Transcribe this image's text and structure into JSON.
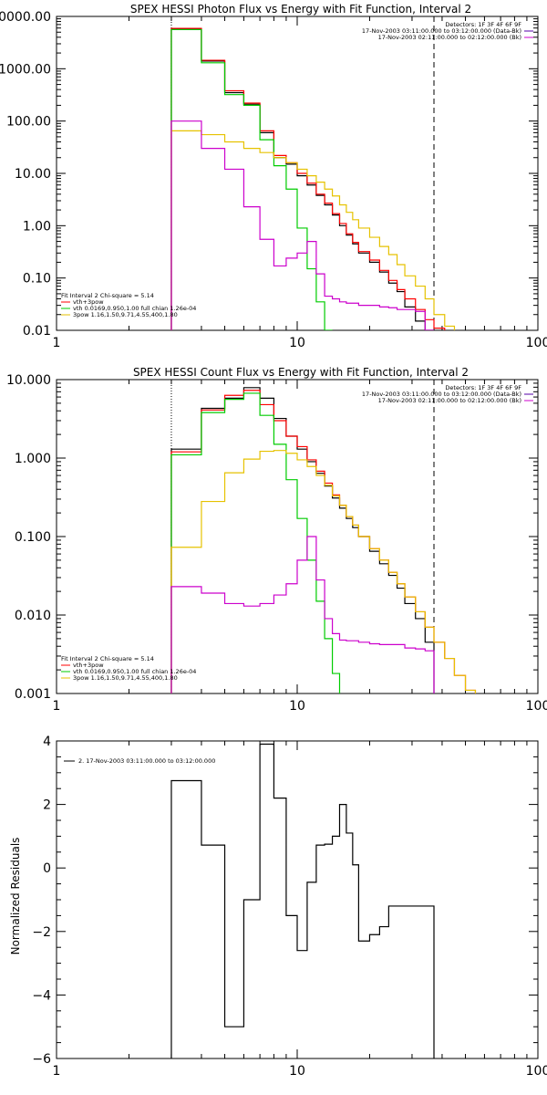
{
  "colors": {
    "black": "#000000",
    "red": "#ff0000",
    "green": "#00cc00",
    "magenta": "#cc00cc",
    "yellow": "#e6c200",
    "purple": "#5500aa"
  },
  "chart_data": [
    {
      "type": "line",
      "scale": "log-log",
      "title": "SPEX HESSI Photon Flux vs Energy with Fit Function, Interval 2",
      "xlim": [
        1,
        100
      ],
      "ylim": [
        0.01,
        10000
      ],
      "xticklabels": [
        "1",
        "10",
        "100"
      ],
      "yticks": [
        0.01,
        0.1,
        1,
        10,
        100,
        1000,
        10000
      ],
      "yticklabels": [
        "0.01",
        "0.10",
        "1.00",
        "10.00",
        "100.00",
        "1000.00",
        "10000.00"
      ],
      "vlines": [
        {
          "x": 3,
          "style": "dotted"
        },
        {
          "x": 37,
          "style": "dashed"
        }
      ],
      "edges": [
        3,
        4,
        5,
        6,
        7,
        8,
        9,
        10,
        11,
        12,
        13,
        14,
        15,
        16,
        17,
        18,
        20,
        22,
        24,
        26,
        28,
        31,
        34,
        37,
        41,
        45,
        50
      ],
      "info_lines": [
        {
          "text": "Detectors: 1F 3F 4F 6F 9F"
        },
        {
          "text": "17-Nov-2003 03:11:00.000 to 03:12:00.000 (Data-Bk)",
          "color": "#5500aa"
        },
        {
          "text": "17-Nov-2003 02:11:00.000 to 02:12:00.000 (Bk)",
          "color": "#cc00cc"
        }
      ],
      "fit_lines": [
        {
          "text": "Fit Interval  2    Chi-square = 5.14"
        },
        {
          "text": "vth+3pow",
          "color": "#ff0000"
        },
        {
          "text": "vth 0.0169,0.950,1.00  full chian 1.26e-04",
          "color": "#00cc00"
        },
        {
          "text": "3pow 1.16,1.50,9.71,4.55,400,1.80",
          "color": "#e6c200"
        }
      ],
      "series": [
        {
          "name": "Data-Bk",
          "color": "#000000",
          "values": [
            5800,
            1400,
            350,
            210,
            60,
            20,
            15,
            9,
            6,
            3.8,
            2.5,
            1.6,
            1.0,
            0.66,
            0.45,
            0.3,
            0.2,
            0.13,
            0.08,
            0.055,
            0.028,
            0.015,
            0.01,
            null,
            null,
            null
          ]
        },
        {
          "name": "vth+3pow",
          "color": "#ff0000",
          "values": [
            5900,
            1450,
            380,
            220,
            65,
            22,
            16,
            10,
            6.5,
            4.0,
            2.7,
            1.7,
            1.1,
            0.7,
            0.48,
            0.32,
            0.22,
            0.14,
            0.09,
            0.06,
            0.04,
            0.025,
            0.016,
            0.011,
            null,
            null
          ]
        },
        {
          "name": "vth",
          "color": "#00cc00",
          "values": [
            5600,
            1300,
            320,
            200,
            44,
            14,
            5,
            0.9,
            0.15,
            0.035,
            0.01,
            null,
            null,
            null,
            null,
            null,
            null,
            null,
            null,
            null,
            null,
            null,
            null,
            null,
            null,
            null
          ]
        },
        {
          "name": "3pow",
          "color": "#e6c200",
          "values": [
            65,
            55,
            40,
            30,
            25,
            20,
            16,
            12,
            9,
            6.8,
            5.0,
            3.7,
            2.5,
            1.8,
            1.3,
            0.9,
            0.6,
            0.4,
            0.28,
            0.18,
            0.11,
            0.07,
            0.04,
            0.02,
            0.012,
            null
          ]
        },
        {
          "name": "Bk",
          "color": "#cc00cc",
          "values": [
            100,
            30,
            12,
            2.3,
            0.55,
            0.17,
            0.24,
            0.3,
            0.5,
            0.12,
            0.045,
            0.04,
            0.035,
            0.033,
            0.033,
            0.03,
            0.03,
            0.028,
            0.027,
            0.025,
            0.025,
            0.023,
            0.01,
            null,
            null,
            null
          ]
        }
      ]
    },
    {
      "type": "line",
      "scale": "log-log",
      "title": "SPEX HESSI Count Flux vs Energy with Fit Function, Interval 2",
      "xlim": [
        1,
        100
      ],
      "ylim": [
        0.001,
        10
      ],
      "xticklabels": [
        "1",
        "10",
        "100"
      ],
      "yticks": [
        0.001,
        0.01,
        0.1,
        1,
        10
      ],
      "yticklabels": [
        "0.001",
        "0.010",
        "0.100",
        "1.000",
        "10.000"
      ],
      "vlines": [
        {
          "x": 3,
          "style": "dotted"
        },
        {
          "x": 37,
          "style": "dashed"
        }
      ],
      "edges": [
        3,
        4,
        5,
        6,
        7,
        8,
        9,
        10,
        11,
        12,
        13,
        14,
        15,
        16,
        17,
        18,
        20,
        22,
        24,
        26,
        28,
        31,
        34,
        37,
        41,
        45,
        50,
        55
      ],
      "info_lines": [
        {
          "text": "Detectors: 1F 3F 4F 6F 9F"
        },
        {
          "text": "17-Nov-2003 03:11:00.000 to 03:12:00.000 (Data-Bk)",
          "color": "#5500aa"
        },
        {
          "text": "17-Nov-2003 02:11:00.000 to 02:12:00.000 (Bk)",
          "color": "#cc00cc"
        }
      ],
      "fit_lines": [
        {
          "text": "Fit Interval  2    Chi-square = 5.14"
        },
        {
          "text": "vth+3pow",
          "color": "#ff0000"
        },
        {
          "text": "vth 0.0169,0.950,1.00  full chian 1.26e-04",
          "color": "#00cc00"
        },
        {
          "text": "3pow 1.16,1.50,9.71,4.55,400,1.80",
          "color": "#e6c200"
        }
      ],
      "series": [
        {
          "name": "Data-Bk",
          "color": "#000000",
          "values": [
            1.3,
            4.3,
            5.8,
            7.9,
            5.8,
            3.2,
            1.9,
            1.3,
            0.9,
            0.64,
            0.44,
            0.31,
            0.23,
            0.17,
            0.13,
            0.1,
            0.065,
            0.045,
            0.032,
            0.022,
            0.014,
            0.009,
            0.0045,
            null,
            null,
            null,
            null
          ]
        },
        {
          "name": "vth+3pow",
          "color": "#ff0000",
          "values": [
            1.2,
            4.1,
            6.3,
            7.3,
            4.8,
            3.0,
            1.9,
            1.4,
            0.95,
            0.68,
            0.48,
            0.34,
            0.25,
            0.18,
            0.14,
            0.1,
            0.07,
            0.05,
            0.035,
            0.025,
            0.017,
            0.011,
            0.007,
            0.0045,
            0.0028,
            0.0017,
            0.0011
          ]
        },
        {
          "name": "vth",
          "color": "#00cc00",
          "values": [
            1.1,
            3.8,
            5.6,
            6.7,
            3.5,
            1.5,
            0.53,
            0.17,
            0.05,
            0.015,
            0.005,
            0.0018,
            null,
            null,
            null,
            null,
            null,
            null,
            null,
            null,
            null,
            null,
            null,
            null,
            null,
            null,
            null
          ]
        },
        {
          "name": "3pow",
          "color": "#e6c200",
          "values": [
            0.073,
            0.28,
            0.65,
            0.97,
            1.22,
            1.25,
            1.15,
            0.95,
            0.78,
            0.6,
            0.45,
            0.33,
            0.25,
            0.18,
            0.14,
            0.1,
            0.07,
            0.05,
            0.035,
            0.025,
            0.017,
            0.011,
            0.007,
            0.0045,
            0.0028,
            0.0017,
            0.0011
          ]
        },
        {
          "name": "Bk",
          "color": "#cc00cc",
          "values": [
            0.023,
            0.019,
            0.014,
            0.013,
            0.014,
            0.018,
            0.025,
            0.05,
            0.1,
            0.028,
            0.009,
            0.0058,
            0.0048,
            0.0047,
            0.0047,
            0.0045,
            0.0043,
            0.0042,
            0.0042,
            0.0042,
            0.0038,
            0.0037,
            0.0035,
            null,
            null,
            null,
            null
          ]
        }
      ]
    },
    {
      "type": "line",
      "scale": "log-linear",
      "title": "",
      "xlim": [
        1,
        100
      ],
      "ylim": [
        -6,
        4
      ],
      "xticklabels": [
        "1",
        "10",
        "100"
      ],
      "yticks": [
        -6,
        -4,
        -2,
        0,
        2,
        4
      ],
      "yticklabels": [
        "−6",
        "−4",
        "−2",
        "0",
        "2",
        "4"
      ],
      "ylabel": "Normalized Residuals",
      "edges": [
        3,
        4,
        5,
        6,
        7,
        8,
        9,
        10,
        11,
        12,
        13,
        14,
        15,
        16,
        17,
        18,
        20,
        22,
        24,
        26,
        28,
        31,
        34,
        37
      ],
      "legend": "2. 17-Nov-2003 03:11:00.000 to 03:12:00.000",
      "series": [
        {
          "name": "2. 17-Nov-2003 03:11:00.000 to 03:12:00.000",
          "color": "#000000",
          "values": [
            2.75,
            0.72,
            -5.0,
            -1.0,
            3.9,
            2.2,
            -1.5,
            -2.6,
            -0.45,
            0.72,
            0.75,
            1.0,
            2.0,
            1.1,
            0.1,
            -2.3,
            -2.1,
            -1.85,
            -1.2,
            -1.2,
            -1.2,
            -1.2,
            -1.2
          ]
        }
      ]
    }
  ]
}
